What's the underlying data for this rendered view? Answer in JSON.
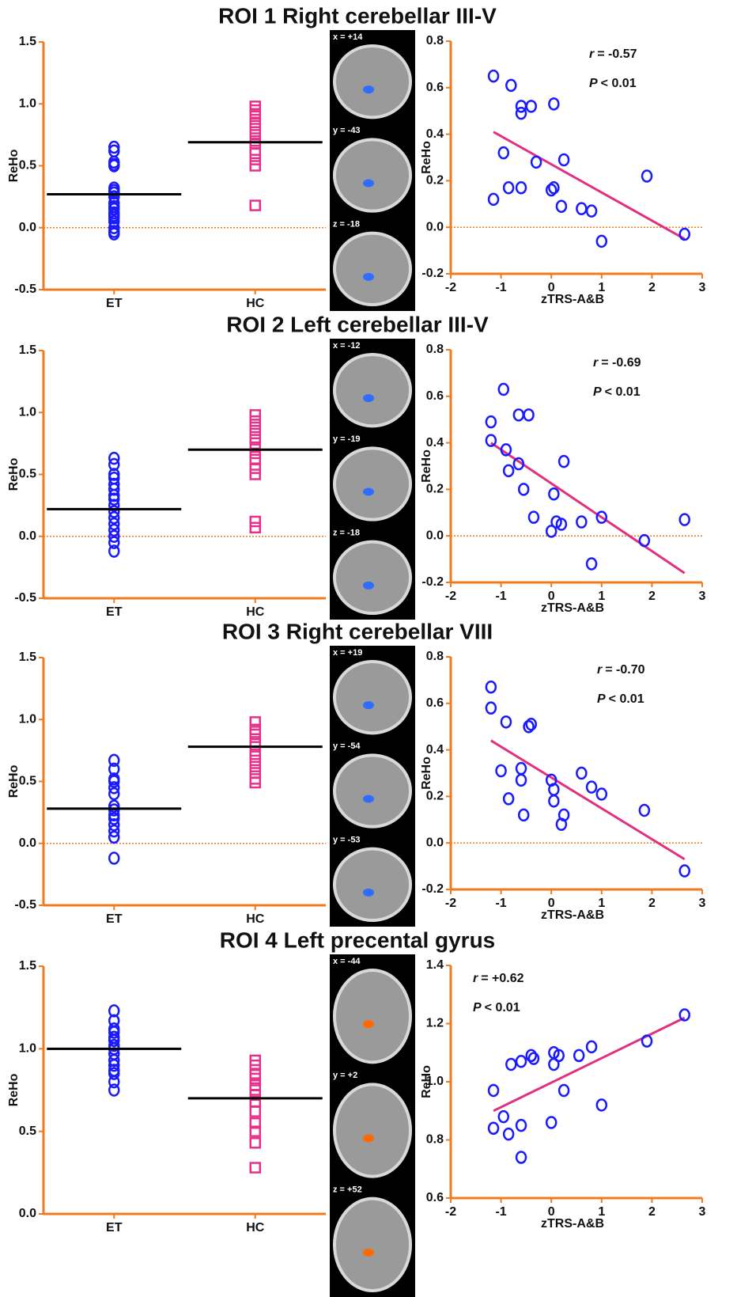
{
  "rows": [
    {
      "title": "ROI 1 Right cerebellar III-V",
      "brain_labels": [
        "x = +14",
        "y = -43",
        "z = -18"
      ]
    },
    {
      "title": "ROI 2 Left cerebellar III-V",
      "brain_labels": [
        "x = -12",
        "y = -19",
        "z = -18"
      ]
    },
    {
      "title": "ROI 3 Right cerebellar VIII",
      "brain_labels": [
        "x = +19",
        "y = -54",
        "y = -53"
      ]
    },
    {
      "title": "ROI 4 Left precental gyrus",
      "brain_labels": [
        "x = -44",
        "y = +2",
        "z = +52"
      ]
    }
  ],
  "chart_data": [
    {
      "type": "strip",
      "y_label": "ReHo",
      "categories": [
        "ET",
        "HC"
      ],
      "axis_color": "#f07a1e",
      "reference_line": 0,
      "ylim": [
        -0.5,
        1.5
      ],
      "yticks": [
        {
          "value": -0.5,
          "label": "-0.5"
        },
        {
          "value": 0,
          "label": "0.0"
        },
        {
          "value": 0.5,
          "label": "0.5"
        },
        {
          "value": 1,
          "label": "1.0"
        },
        {
          "value": 1.5,
          "label": "1.5"
        }
      ],
      "series": [
        {
          "color": "#1a1aff",
          "marker": "circle",
          "mean": 0.27,
          "values": [
            0.65,
            0.62,
            0.53,
            0.51,
            0.5,
            0.32,
            0.3,
            0.28,
            0.25,
            0.2,
            0.17,
            0.15,
            0.12,
            0.1,
            0.08,
            0.05,
            0.0,
            -0.03,
            -0.05
          ]
        },
        {
          "color": "#e8308a",
          "marker": "square",
          "mean": 0.69,
          "values": [
            0.98,
            0.95,
            0.92,
            0.9,
            0.85,
            0.8,
            0.75,
            0.7,
            0.68,
            0.6,
            0.55,
            0.5,
            0.18
          ]
        }
      ]
    },
    {
      "type": "scatter",
      "x_label": "zTRS-A&B",
      "y_label": "ReHo",
      "color": "#1a1aff",
      "axis_color": "#f07a1e",
      "reference_line": 0,
      "xlim": [
        -2,
        3
      ],
      "xticks": [
        -2,
        -1,
        0,
        1,
        2,
        3
      ],
      "ylim": [
        -0.2,
        0.8
      ],
      "yticks": [
        -0.2,
        {
          "value": 0,
          "label": "0.0"
        },
        0.2,
        0.4,
        0.6,
        0.8
      ],
      "x": [
        -1.15,
        -0.8,
        -0.6,
        -0.6,
        -0.4,
        0.05,
        -0.95,
        -0.3,
        0.25,
        -1.15,
        -0.85,
        -0.6,
        0,
        0.05,
        0.2,
        0.6,
        0.8,
        1,
        1.9,
        2.65
      ],
      "y": [
        0.65,
        0.61,
        0.52,
        0.49,
        0.52,
        0.53,
        0.32,
        0.28,
        0.29,
        0.12,
        0.17,
        0.17,
        0.16,
        0.17,
        0.09,
        0.08,
        0.07,
        -0.06,
        0.22,
        -0.03
      ],
      "fit": {
        "color": "#e0307f",
        "x": [
          -1.15,
          2.65
        ],
        "y": [
          0.41,
          -0.05
        ]
      },
      "annotations": [
        [
          "r",
          "= -0.57"
        ],
        [
          "P",
          "< 0.01"
        ]
      ]
    },
    {
      "type": "strip",
      "y_label": "ReHo",
      "categories": [
        "ET",
        "HC"
      ],
      "axis_color": "#f07a1e",
      "reference_line": 0,
      "ylim": [
        -0.5,
        1.5
      ],
      "yticks": [
        {
          "value": -0.5,
          "label": "-0.5"
        },
        {
          "value": 0,
          "label": "0.0"
        },
        {
          "value": 0.5,
          "label": "0.5"
        },
        {
          "value": 1,
          "label": "1.0"
        },
        {
          "value": 1.5,
          "label": "1.5"
        }
      ],
      "series": [
        {
          "color": "#1a1aff",
          "marker": "circle",
          "mean": 0.22,
          "values": [
            0.63,
            0.58,
            0.5,
            0.47,
            0.42,
            0.38,
            0.33,
            0.3,
            0.25,
            0.2,
            0.15,
            0.1,
            0.05,
            0.0,
            -0.05,
            -0.12
          ]
        },
        {
          "color": "#e8308a",
          "marker": "square",
          "mean": 0.7,
          "values": [
            0.98,
            0.93,
            0.88,
            0.83,
            0.78,
            0.72,
            0.67,
            0.62,
            0.55,
            0.5,
            0.12,
            0.07
          ]
        }
      ]
    },
    {
      "type": "scatter",
      "x_label": "zTRS-A&B",
      "y_label": "ReHo",
      "color": "#1a1aff",
      "axis_color": "#f07a1e",
      "reference_line": 0,
      "xlim": [
        -2,
        3
      ],
      "xticks": [
        -2,
        -1,
        0,
        1,
        2,
        3
      ],
      "ylim": [
        -0.2,
        0.8
      ],
      "yticks": [
        -0.2,
        {
          "value": 0,
          "label": "0.0"
        },
        0.2,
        0.4,
        0.6,
        0.8
      ],
      "x": [
        -1.2,
        -0.95,
        -0.65,
        -0.45,
        -1.2,
        -0.9,
        -0.85,
        -0.65,
        -0.55,
        0.25,
        -0.35,
        0.05,
        0,
        0.1,
        0.2,
        0.6,
        1,
        0.8,
        1.85,
        2.65
      ],
      "y": [
        0.49,
        0.63,
        0.52,
        0.52,
        0.41,
        0.37,
        0.28,
        0.31,
        0.2,
        0.32,
        0.08,
        0.18,
        0.02,
        0.06,
        0.05,
        0.06,
        0.08,
        -0.12,
        -0.02,
        0.07
      ],
      "fit": {
        "color": "#e0307f",
        "x": [
          -1.2,
          2.65
        ],
        "y": [
          0.4,
          -0.16
        ]
      },
      "annotations": [
        [
          "r",
          "= -0.69"
        ],
        [
          "P",
          "< 0.01"
        ]
      ]
    },
    {
      "type": "strip",
      "y_label": "ReHo",
      "categories": [
        "ET",
        "HC"
      ],
      "axis_color": "#f07a1e",
      "reference_line": 0,
      "ylim": [
        -0.5,
        1.5
      ],
      "yticks": [
        {
          "value": -0.5,
          "label": "-0.5"
        },
        {
          "value": 0,
          "label": "0.0"
        },
        {
          "value": 0.5,
          "label": "0.5"
        },
        {
          "value": 1,
          "label": "1.0"
        },
        {
          "value": 1.5,
          "label": "1.5"
        }
      ],
      "series": [
        {
          "color": "#1a1aff",
          "marker": "circle",
          "mean": 0.28,
          "values": [
            0.67,
            0.6,
            0.52,
            0.5,
            0.45,
            0.4,
            0.3,
            0.27,
            0.23,
            0.2,
            0.15,
            0.1,
            0.05,
            -0.12
          ]
        },
        {
          "color": "#e8308a",
          "marker": "square",
          "mean": 0.78,
          "values": [
            0.98,
            0.92,
            0.88,
            0.82,
            0.78,
            0.72,
            0.67,
            0.62,
            0.57,
            0.52,
            0.49
          ]
        }
      ]
    },
    {
      "type": "scatter",
      "x_label": "zTRS-A&B",
      "y_label": "ReHo",
      "color": "#1a1aff",
      "axis_color": "#f07a1e",
      "reference_line": 0,
      "xlim": [
        -2,
        3
      ],
      "xticks": [
        -2,
        -1,
        0,
        1,
        2,
        3
      ],
      "ylim": [
        -0.2,
        0.8
      ],
      "yticks": [
        -0.2,
        {
          "value": 0,
          "label": "0.0"
        },
        0.2,
        0.4,
        0.6,
        0.8
      ],
      "x": [
        -1.2,
        -1.2,
        -0.9,
        -0.45,
        -0.4,
        -1,
        -0.85,
        -0.6,
        -0.6,
        -0.55,
        0,
        0.05,
        0.05,
        0.25,
        0.2,
        0.6,
        0.8,
        1,
        1.85,
        2.65
      ],
      "y": [
        0.67,
        0.58,
        0.52,
        0.5,
        0.51,
        0.31,
        0.19,
        0.32,
        0.27,
        0.12,
        0.27,
        0.23,
        0.18,
        0.12,
        0.08,
        0.3,
        0.24,
        0.21,
        0.14,
        -0.12
      ],
      "fit": {
        "color": "#e0307f",
        "x": [
          -1.2,
          2.65
        ],
        "y": [
          0.44,
          -0.07
        ]
      },
      "annotations": [
        [
          "r",
          "= -0.70"
        ],
        [
          "P",
          "< 0.01"
        ]
      ]
    },
    {
      "type": "strip",
      "y_label": "ReHo",
      "categories": [
        "ET",
        "HC"
      ],
      "axis_color": "#f07a1e",
      "ylim": [
        0,
        1.5
      ],
      "yticks": [
        {
          "value": 0,
          "label": "0.0"
        },
        {
          "value": 0.5,
          "label": "0.5"
        },
        {
          "value": 1,
          "label": "1.0"
        },
        {
          "value": 1.5,
          "label": "1.5"
        }
      ],
      "series": [
        {
          "color": "#1a1aff",
          "marker": "circle",
          "mean": 1.0,
          "values": [
            1.23,
            1.17,
            1.12,
            1.1,
            1.07,
            1.05,
            1.02,
            1.0,
            0.97,
            0.93,
            0.9,
            0.87,
            0.85,
            0.8,
            0.75
          ]
        },
        {
          "color": "#e8308a",
          "marker": "square",
          "mean": 0.7,
          "values": [
            0.93,
            0.9,
            0.85,
            0.82,
            0.78,
            0.75,
            0.72,
            0.68,
            0.62,
            0.55,
            0.5,
            0.43,
            0.28
          ]
        }
      ]
    },
    {
      "type": "scatter",
      "x_label": "zTRS-A&B",
      "y_label": "ReHo",
      "color": "#1a1aff",
      "axis_color": "#f07a1e",
      "xlim": [
        -2,
        3
      ],
      "xticks": [
        -2,
        -1,
        0,
        1,
        2,
        3
      ],
      "ylim": [
        0.6,
        1.4
      ],
      "yticks": [
        0.6,
        0.8,
        {
          "value": 1,
          "label": "1.0"
        },
        1.2,
        1.4
      ],
      "x": [
        -1.15,
        -0.8,
        -0.6,
        -0.4,
        -0.35,
        0.05,
        0.05,
        0.15,
        0.55,
        0.8,
        1.9,
        2.65,
        -1.15,
        -0.95,
        -0.85,
        -0.6,
        -0.6,
        0,
        0.25,
        1
      ],
      "y": [
        0.97,
        1.06,
        1.07,
        1.09,
        1.08,
        1.1,
        1.06,
        1.09,
        1.09,
        1.12,
        1.14,
        1.23,
        0.84,
        0.88,
        0.82,
        0.85,
        0.74,
        0.86,
        0.97,
        0.92
      ],
      "fit": {
        "color": "#e0307f",
        "x": [
          -1.15,
          2.65
        ],
        "y": [
          0.9,
          1.22
        ]
      },
      "annotations": [
        [
          "r",
          "= +0.62"
        ],
        [
          "P",
          "< 0.01"
        ]
      ]
    }
  ]
}
